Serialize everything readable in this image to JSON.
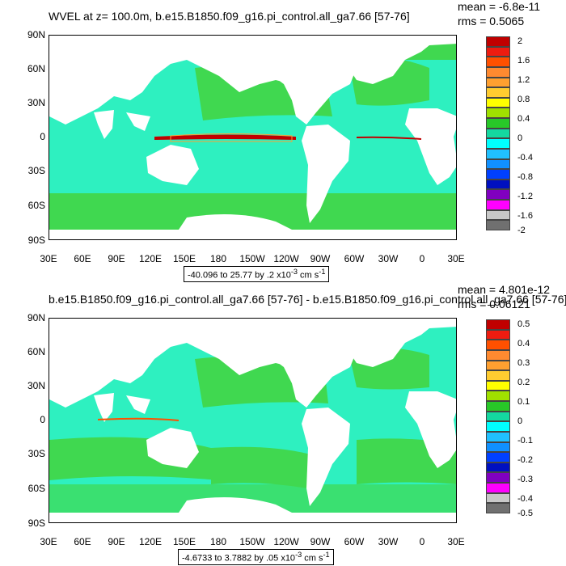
{
  "top": {
    "title": "WVEL at z= 100.0m, b.e15.B1850.f09_g16.pi_control.all_ga7.66 [57-76]",
    "mean": "mean = -6.8e-11",
    "rms": "rms = 0.5065",
    "range_text": "-40.096 to 25.77 by .2 x10",
    "range_exp": "-3",
    "range_unit": " cm s",
    "range_unit_exp": "-1",
    "colorbar_labels": [
      "2",
      "1.6",
      "1.2",
      "0.8",
      "0.4",
      "0",
      "-0.4",
      "-0.8",
      "-1.2",
      "-1.6",
      "-2"
    ]
  },
  "bottom": {
    "title": "b.e15.B1850.f09_g16.pi_control.all_ga7.66 [57-76] - b.e15.B1850.f09_g16.pi_control.all_ga7.66 [57-76]",
    "mean": "mean = 4.801e-12",
    "rms": "rms = 0.06121",
    "range_text": "-4.6733 to 3.7882 by .05 x10",
    "range_exp": "-3",
    "range_unit": " cm s",
    "range_unit_exp": "-1",
    "colorbar_labels": [
      "0.5",
      "0.4",
      "0.3",
      "0.2",
      "0.1",
      "0",
      "-0.1",
      "-0.2",
      "-0.3",
      "-0.4",
      "-0.5"
    ]
  },
  "axes": {
    "lat_labels": [
      "90N",
      "60N",
      "30N",
      "0",
      "30S",
      "60S",
      "90S"
    ],
    "lon_labels": [
      "30E",
      "60E",
      "90E",
      "120E",
      "150E",
      "180",
      "150W",
      "120W",
      "90W",
      "60W",
      "30W",
      "0",
      "30E"
    ]
  },
  "colorbar_colors": [
    "#c00000",
    "#ee1c10",
    "#ff5000",
    "#ff8a30",
    "#ffa030",
    "#ffcc30",
    "#ffff00",
    "#a0e000",
    "#28c828",
    "#14d8a0",
    "#00ffff",
    "#20c0ff",
    "#1090ff",
    "#0040ff",
    "#0010c0",
    "#8000c0",
    "#ff00ff",
    "#c8c8c8",
    "#707070"
  ],
  "colors": {
    "land": "#ffffff",
    "ocean_main": "#2ef0c0",
    "ocean_green": "#40d850",
    "upwelling": "#c00000"
  }
}
